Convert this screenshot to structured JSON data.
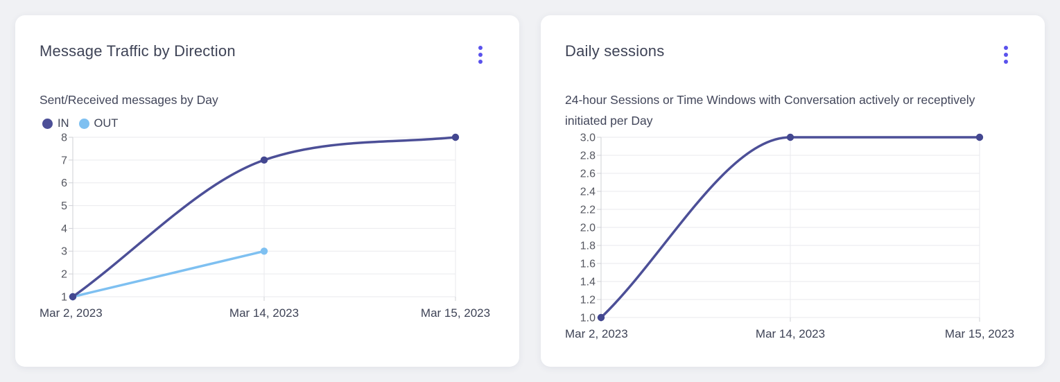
{
  "colors": {
    "accent": "#5A52EC",
    "grid": "#E9EAEE",
    "axis": "#CFD0D6",
    "title_ink": "#3E4356",
    "subtitle_ink": "#42465A",
    "ytick_ink": "#54565F",
    "xtick_ink": "#3E4356",
    "card_background": "#FFFFFF",
    "page_background": "#F0F1F4"
  },
  "cards": [
    {
      "title": "Message Traffic by Direction",
      "subtitle": "Sent/Received messages by Day",
      "menu_icon": "kebab-menu-icon"
    },
    {
      "title": "Daily sessions",
      "subtitle": "24-hour Sessions or Time Windows with Conversation actively or receptively initiated per Day",
      "menu_icon": "kebab-menu-icon"
    }
  ],
  "chart_data": [
    {
      "type": "line",
      "title": "Message Traffic by Direction",
      "subtitle": "Sent/Received messages by Day",
      "categories": [
        "Mar 2, 2023",
        "Mar 14, 2023",
        "Mar 15, 2023"
      ],
      "series": [
        {
          "name": "IN",
          "values": [
            1,
            7,
            8
          ],
          "color": "#4C4F97",
          "point_color": "#434790"
        },
        {
          "name": "OUT",
          "values": [
            1,
            3,
            null
          ],
          "color": "#7EC0F1",
          "point_color": "#7EC0F1"
        }
      ],
      "xlabel": "",
      "ylabel": "",
      "ylim": [
        1,
        8
      ],
      "ytick_step": 1,
      "ytick_decimals": 0,
      "grid": true,
      "smooth": true,
      "legend_position": "top-left"
    },
    {
      "type": "line",
      "title": "Daily sessions",
      "subtitle": "24-hour Sessions or Time Windows with Conversation actively or receptively initiated per Day",
      "categories": [
        "Mar 2, 2023",
        "Mar 14, 2023",
        "Mar 15, 2023"
      ],
      "series": [
        {
          "name": "Daily sessions",
          "values": [
            1,
            3,
            3
          ],
          "color": "#4C4F97",
          "point_color": "#434790"
        }
      ],
      "xlabel": "",
      "ylabel": "",
      "ylim": [
        1,
        3
      ],
      "ytick_step": 0.2,
      "ytick_decimals": 1,
      "grid": true,
      "smooth": true,
      "legend_position": "none"
    }
  ]
}
